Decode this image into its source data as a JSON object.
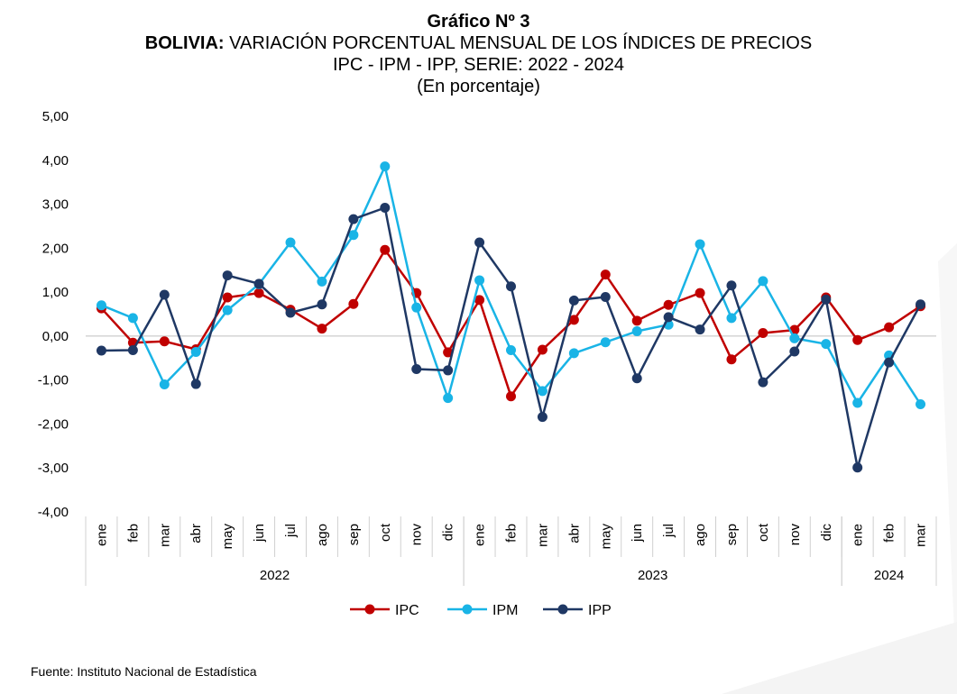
{
  "title": {
    "line1": "Gráfico Nº 3",
    "line2_bold": "BOLIVIA:",
    "line2_rest": " VARIACIÓN PORCENTUAL MENSUAL DE LOS ÍNDICES DE PRECIOS",
    "line3": "IPC - IPM - IPP, SERIE: 2022 - 2024",
    "line4": "(En porcentaje)"
  },
  "source": "Fuente: Instituto Nacional de Estadística",
  "chart_data": {
    "type": "line",
    "categories": [
      "ene",
      "feb",
      "mar",
      "abr",
      "may",
      "jun",
      "jul",
      "ago",
      "sep",
      "oct",
      "nov",
      "dic",
      "ene",
      "feb",
      "mar",
      "abr",
      "may",
      "jun",
      "jul",
      "ago",
      "sep",
      "oct",
      "nov",
      "dic",
      "ene",
      "feb",
      "mar"
    ],
    "groups": [
      {
        "label": "2022",
        "start": 0,
        "count": 12
      },
      {
        "label": "2023",
        "start": 12,
        "count": 12
      },
      {
        "label": "2024",
        "start": 24,
        "count": 3
      }
    ],
    "ylim": [
      -4,
      5
    ],
    "yticks": [
      -4,
      -3,
      -2,
      -1,
      0,
      1,
      2,
      3,
      4,
      5
    ],
    "ytick_labels": [
      "-4,00",
      "-3,00",
      "-2,00",
      "-1,00",
      "0,00",
      "1,00",
      "2,00",
      "3,00",
      "4,00",
      "5,00"
    ],
    "legend_position": "bottom",
    "series": [
      {
        "name": "IPC",
        "color": "#c00000",
        "values": [
          0.63,
          -0.15,
          -0.12,
          -0.3,
          0.88,
          0.98,
          0.6,
          0.17,
          0.73,
          1.96,
          0.98,
          -0.37,
          0.82,
          -1.37,
          -0.31,
          0.37,
          1.4,
          0.35,
          0.71,
          0.98,
          -0.53,
          0.07,
          0.14,
          0.88,
          -0.09,
          0.2,
          0.68
        ]
      },
      {
        "name": "IPM",
        "color": "#19b4e6",
        "values": [
          0.7,
          0.41,
          -1.1,
          -0.36,
          0.59,
          1.18,
          2.13,
          1.24,
          2.3,
          3.86,
          0.65,
          -1.41,
          1.27,
          -0.32,
          -1.25,
          -0.39,
          -0.14,
          0.11,
          0.26,
          2.09,
          0.41,
          1.25,
          -0.05,
          -0.18,
          -1.52,
          -0.44,
          -1.55
        ]
      },
      {
        "name": "IPP",
        "color": "#1f3864",
        "values": [
          -0.33,
          -0.32,
          0.94,
          -1.09,
          1.38,
          1.19,
          0.53,
          0.72,
          2.66,
          2.92,
          -0.75,
          -0.78,
          2.13,
          1.13,
          -1.84,
          0.81,
          0.89,
          -0.96,
          0.43,
          0.15,
          1.15,
          -1.05,
          -0.35,
          0.83,
          -2.99,
          -0.6,
          0.72
        ]
      }
    ]
  }
}
